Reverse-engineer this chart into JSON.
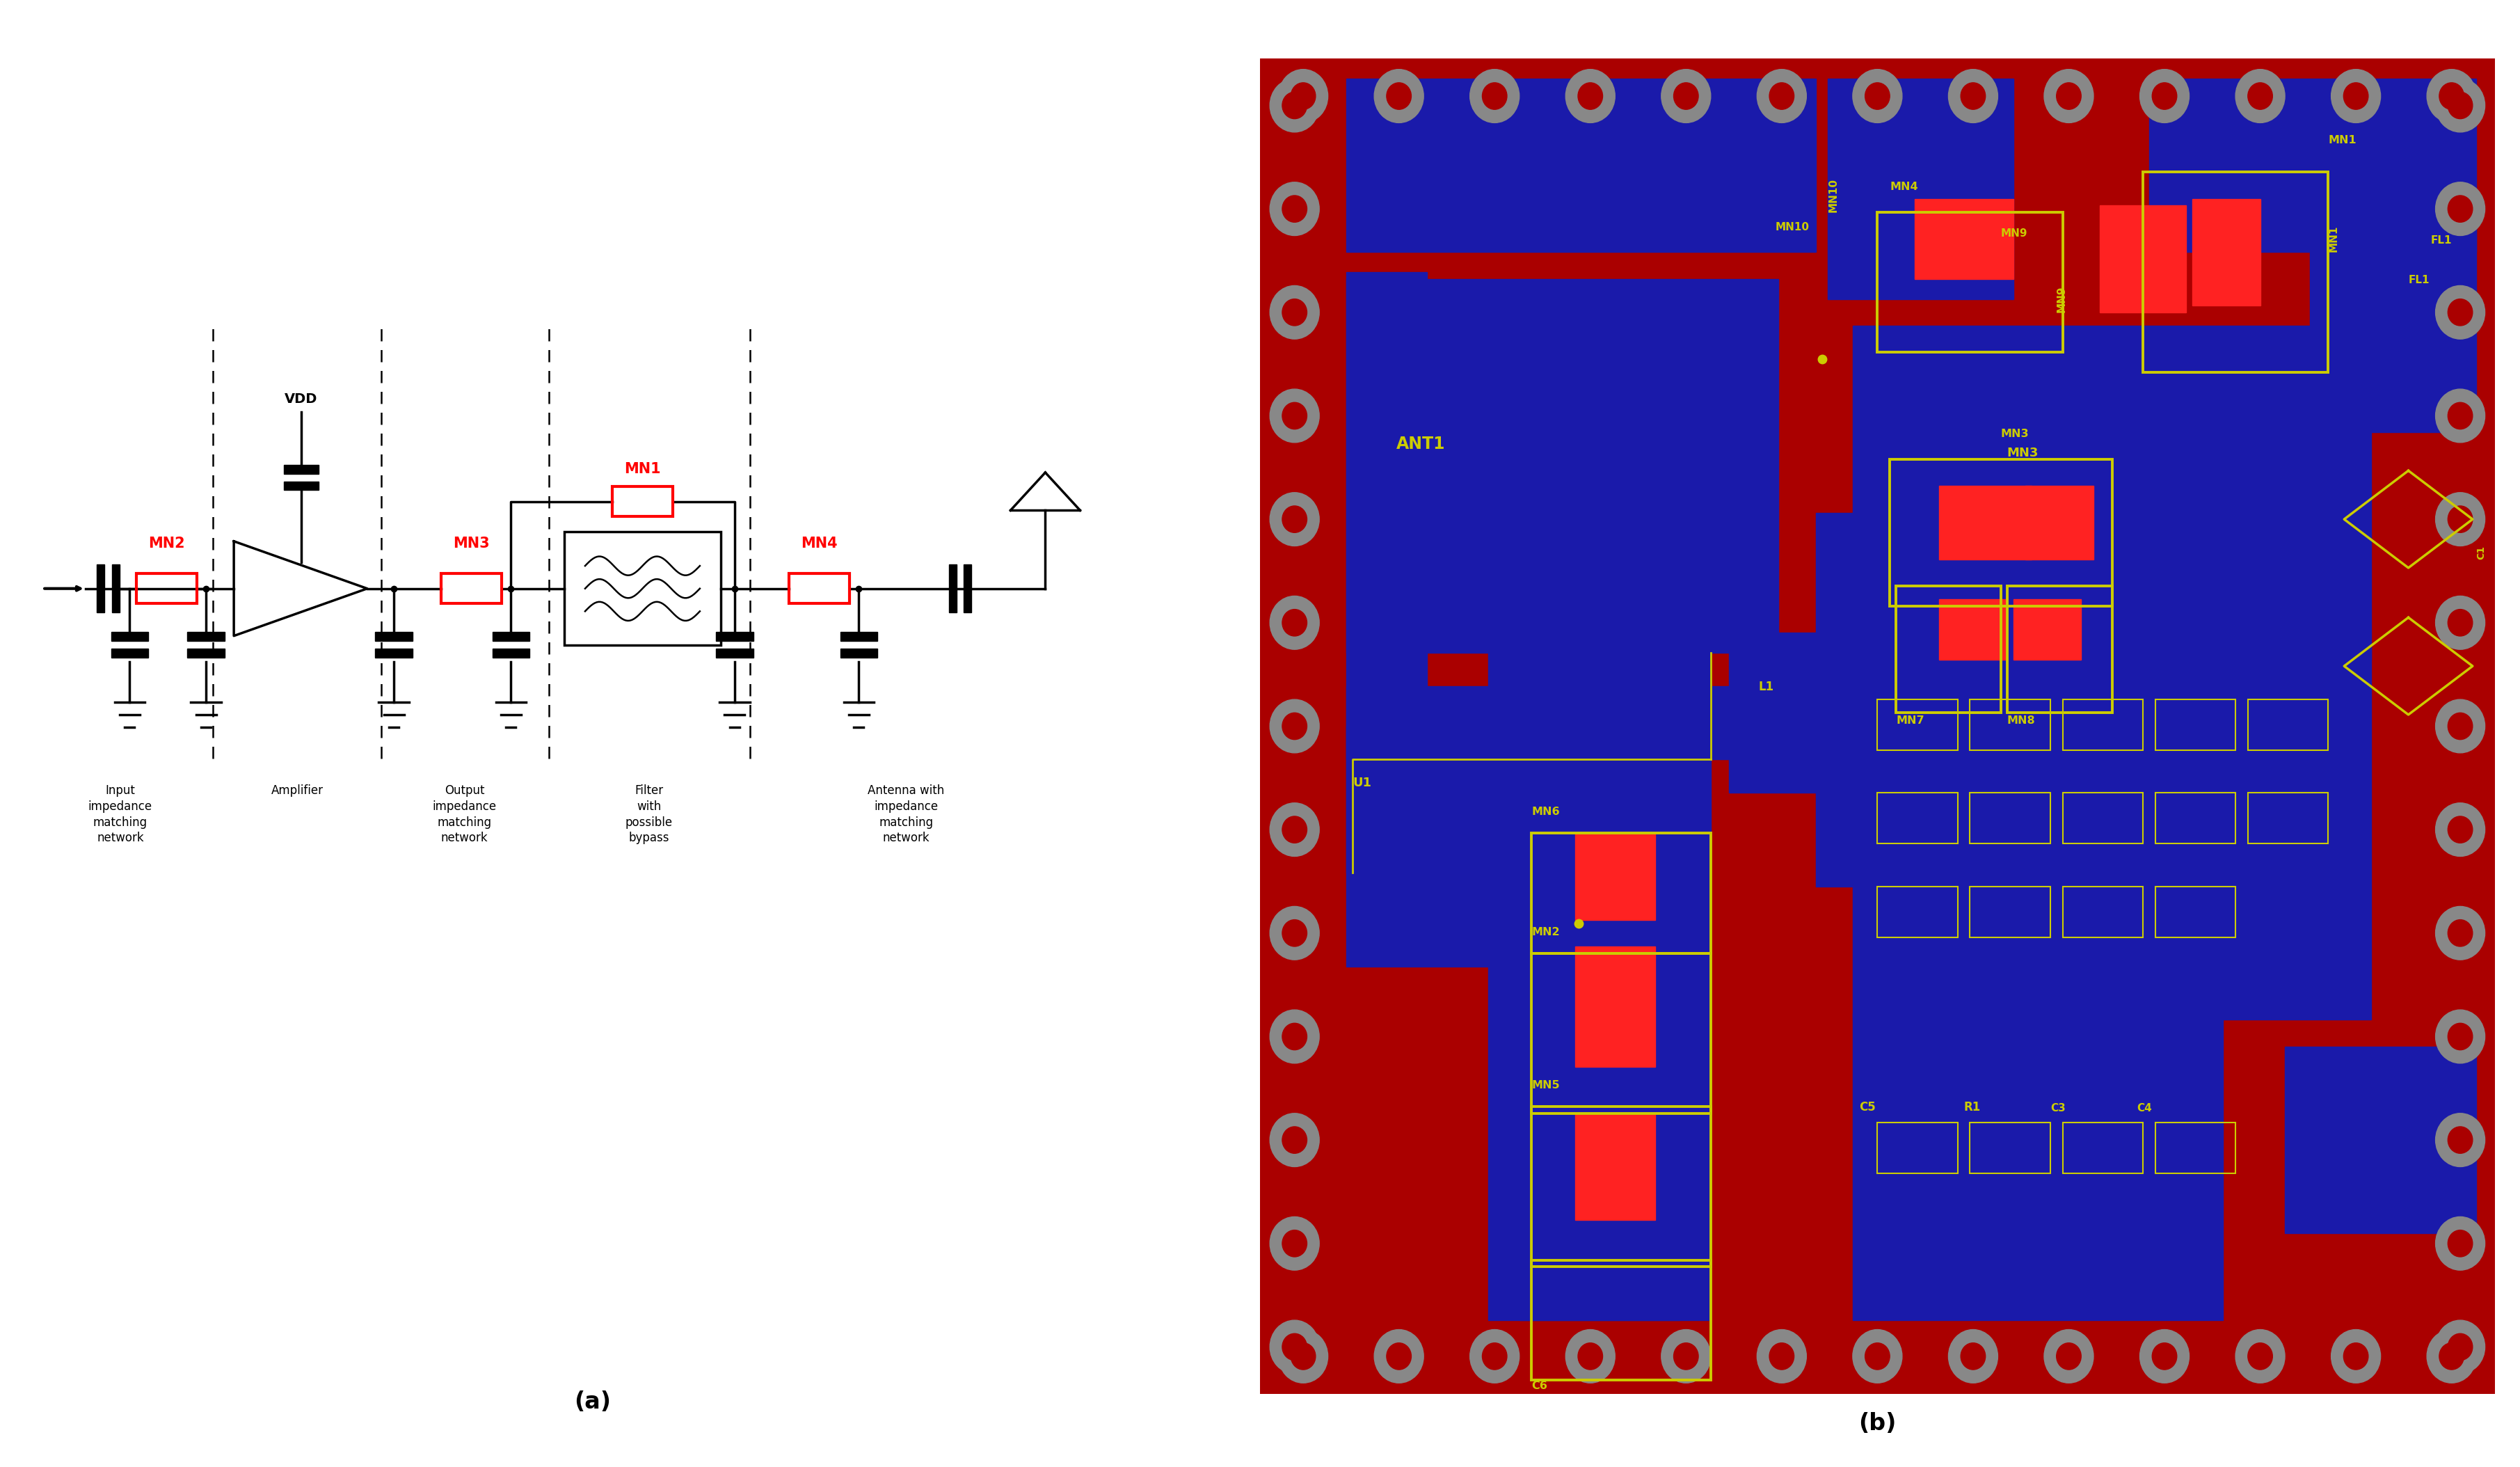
{
  "fig_width": 36.22,
  "fig_height": 21.08,
  "bg_color": "#ffffff",
  "panel_a": {
    "red_color": "#ff0000",
    "black_color": "#000000",
    "section_labels": [
      "Input\nimpedance\nmatching\nnetwork",
      "Amplifier",
      "Output\nimpedance\nmatching\nnetwork",
      "Filter\nwith\npossible\nbypass",
      "Antenna with\nimpedance\nmatching\nnetwork"
    ]
  },
  "panel_b": {
    "dark_red": "#aa0000",
    "blue_color": "#1a1aaa",
    "red_color": "#ff2222",
    "yellow_color": "#cccc00",
    "gray_color": "#888888"
  }
}
